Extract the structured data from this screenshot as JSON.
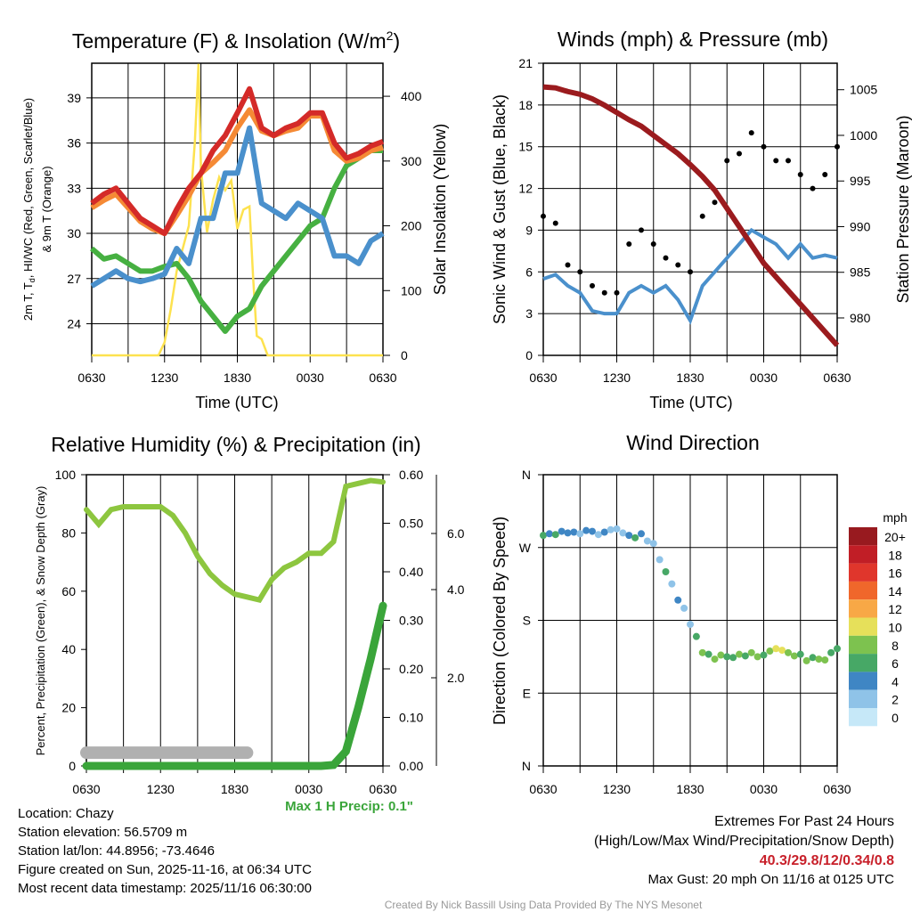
{
  "time_ticks": [
    "0630",
    "1230",
    "1830",
    "0030",
    "0630"
  ],
  "chart_data": [
    {
      "type": "line",
      "title": "Temperature (F) & Insolation (W/m",
      "title_sup": "2",
      "title_end": ")",
      "xlabel": "Time (UTC)",
      "ylabel": "2m T, T",
      "ylabel_sub": "d",
      "ylabel_rest": ", HI/WC (Red, Green, Scarlet/Blue)",
      "ylabel2": "& 9m T (Orange)",
      "y2label": "Solar Insolation (Yellow)",
      "x_hours_since_0630": [
        0,
        1,
        2,
        3,
        4,
        5,
        6,
        7,
        8,
        9,
        10,
        11,
        12,
        13,
        14,
        15,
        16,
        17,
        18,
        19,
        20,
        21,
        22,
        23,
        24
      ],
      "ylim": [
        21.9,
        41.3
      ],
      "yticks": [
        24,
        27,
        30,
        33,
        36,
        39
      ],
      "y2lim": [
        0,
        451
      ],
      "y2ticks": [
        0,
        100,
        200,
        300,
        400
      ],
      "series": [
        {
          "name": "2m T (Red)",
          "color": "#d42a28",
          "values": [
            32,
            32.6,
            33,
            32,
            31,
            30.5,
            30,
            31.6,
            33,
            34,
            35.5,
            36.5,
            38,
            39.6,
            37,
            36.5,
            37,
            37.3,
            38,
            38,
            36,
            35,
            35.3,
            35.8,
            36.1
          ]
        },
        {
          "name": "9m T (Orange)",
          "color": "#f58a35",
          "values": [
            31.7,
            32.2,
            32.6,
            31.7,
            30.8,
            30.3,
            30,
            31.2,
            32.5,
            34,
            34.7,
            35.5,
            37,
            38.2,
            36.8,
            36.5,
            36.8,
            37,
            37.8,
            37.8,
            35.5,
            34.8,
            35,
            35.5,
            35.7
          ]
        },
        {
          "name": "HI/WC (Blue)",
          "color": "#4a90cc",
          "values": [
            26.5,
            27,
            27.5,
            27,
            26.8,
            27,
            27.3,
            29,
            28,
            31,
            31,
            34,
            34,
            37,
            32,
            31.5,
            31,
            32,
            31.5,
            31,
            28.5,
            28.5,
            28,
            29.5,
            30
          ]
        },
        {
          "name": "Td (Green)",
          "color": "#46b041",
          "values": [
            29,
            28.3,
            28.5,
            28,
            27.5,
            27.5,
            27.8,
            28,
            27,
            25.5,
            24.5,
            23.5,
            24.5,
            25,
            26.5,
            27.5,
            28.5,
            29.5,
            30.5,
            31,
            33,
            34.5,
            35,
            35.5,
            35.5
          ]
        }
      ],
      "insolation": {
        "name": "Solar Insolation (Yellow)",
        "color": "#fde24f",
        "x": [
          0,
          5.5,
          6,
          6.5,
          7,
          7.5,
          8,
          8.5,
          8.8,
          9,
          9.5,
          10,
          10.5,
          11,
          11.5,
          12,
          12.5,
          13,
          13.3,
          13.6,
          14,
          14.5,
          15,
          24
        ],
        "values": [
          0,
          0,
          20,
          70,
          130,
          165,
          200,
          330,
          450,
          290,
          190,
          240,
          275,
          255,
          270,
          195,
          225,
          230,
          120,
          30,
          25,
          0,
          0,
          0
        ]
      }
    },
    {
      "type": "line",
      "title": "Winds (mph) & Pressure (mb)",
      "xlabel": "Time (UTC)",
      "ylabel": "Sonic Wind & Gust (Blue, Black)",
      "y2label": "Station Pressure (Maroon)",
      "x_hours_since_0630": [
        0,
        1,
        2,
        3,
        4,
        5,
        6,
        7,
        8,
        9,
        10,
        11,
        12,
        13,
        14,
        15,
        16,
        17,
        18,
        19,
        20,
        21,
        22,
        23,
        24
      ],
      "ylim": [
        0,
        21
      ],
      "yticks": [
        0,
        3,
        6,
        9,
        12,
        15,
        18,
        21
      ],
      "y2lim": [
        975.9,
        1007.9
      ],
      "y2ticks": [
        980,
        985,
        990,
        995,
        1000,
        1005
      ],
      "series": [
        {
          "name": "Sonic Wind",
          "color": "#4a90cc",
          "values": [
            5.5,
            5.8,
            5,
            4.5,
            3.2,
            3,
            3,
            4.5,
            5,
            4.5,
            5,
            4,
            2.5,
            5,
            6,
            7,
            8,
            9,
            8.5,
            8,
            7,
            8,
            7,
            7.2,
            7
          ]
        },
        {
          "name": "Gust",
          "color": "#000000",
          "type": "scatter",
          "values": [
            10,
            9.5,
            6.5,
            6,
            5,
            4.5,
            4.5,
            8,
            9,
            8,
            7,
            6.5,
            6,
            10,
            11,
            14,
            14.5,
            16,
            15,
            14,
            14,
            13,
            12,
            13,
            15
          ]
        },
        {
          "name": "Station Pressure",
          "color": "#9b1b1e",
          "values": [
            1005.3,
            1005.2,
            1004.8,
            1004.5,
            1004,
            1003.3,
            1002.5,
            1001.7,
            1001,
            1000,
            999,
            998,
            996.8,
            995.5,
            994,
            992,
            990,
            988,
            986,
            984.5,
            983,
            981.5,
            980,
            978.5,
            977
          ]
        }
      ]
    },
    {
      "type": "line",
      "title": "Relative Humidity (%) & Precipitation (in)",
      "ylabel": "Percent, Precipitation (Green), & Snow Depth (Gray)",
      "annotation": "Max 1 H Precip: 0.1\"",
      "x_hours_since_0630": [
        0,
        1,
        2,
        3,
        4,
        5,
        6,
        7,
        8,
        9,
        10,
        11,
        12,
        13,
        14,
        15,
        16,
        17,
        18,
        19,
        20,
        21,
        22,
        23,
        24
      ],
      "ylim": [
        0,
        100
      ],
      "yticks": [
        0,
        20,
        40,
        60,
        80,
        100
      ],
      "y2lim": [
        0,
        0.6
      ],
      "y2ticks": [
        "0.00",
        "0.10",
        "0.20",
        "0.30",
        "0.40",
        "0.50",
        "0.60"
      ],
      "y3ticks": [
        "2.0",
        "4.0",
        "6.0"
      ],
      "series": [
        {
          "name": "RH",
          "color": "#8dc63f",
          "values": [
            88,
            83,
            88,
            89,
            89,
            89,
            89,
            86,
            80,
            72,
            66,
            62,
            59,
            58,
            57,
            64,
            68,
            70,
            73,
            73,
            77,
            96,
            97,
            98,
            97.5
          ]
        },
        {
          "name": "Precipitation",
          "color": "#3aa53a",
          "values": [
            0,
            0,
            0,
            0,
            0,
            0,
            0,
            0,
            0,
            0,
            0,
            0,
            0,
            0,
            0,
            0,
            0,
            0,
            0,
            0,
            0.002,
            0.03,
            0.12,
            0.22,
            0.33
          ]
        },
        {
          "name": "Snow Depth",
          "color": "#b0b0b0",
          "values": [
            0.3,
            0.3,
            0.3,
            0.3,
            0.3,
            0.3,
            0.3,
            0.3,
            0.3,
            0.3,
            0.3,
            0.3,
            0.3,
            0.3,
            null,
            null,
            null,
            null,
            null,
            null,
            null,
            null,
            null,
            null,
            null
          ]
        }
      ]
    },
    {
      "type": "scatter",
      "title": "Wind Direction",
      "ylabel": "Direction (Colored By Speed)",
      "yticks": [
        "N",
        "E",
        "S",
        "W",
        "N"
      ],
      "legend_title": "mph",
      "legend": [
        {
          "label": "20+",
          "color": "#981a1f"
        },
        {
          "label": "18",
          "color": "#c11e26"
        },
        {
          "label": "16",
          "color": "#e0362c"
        },
        {
          "label": "14",
          "color": "#f0672b"
        },
        {
          "label": "12",
          "color": "#f8a846"
        },
        {
          "label": "10",
          "color": "#e6e05a"
        },
        {
          "label": "8",
          "color": "#7dc24f"
        },
        {
          "label": "6",
          "color": "#47a866"
        },
        {
          "label": "4",
          "color": "#3f86c4"
        },
        {
          "label": "2",
          "color": "#8fc3e8"
        },
        {
          "label": "0",
          "color": "#c6e8f8"
        }
      ],
      "x_hours_since_0630": [
        0,
        0.5,
        1,
        1.5,
        2,
        2.5,
        3,
        3.5,
        4,
        4.5,
        5,
        5.5,
        6,
        6.5,
        7,
        7.5,
        8,
        8.5,
        9,
        9.5,
        10,
        10.5,
        11,
        11.5,
        12,
        12.5,
        13,
        13.5,
        14,
        14.5,
        15,
        15.5,
        16,
        16.5,
        17,
        17.5,
        18,
        18.5,
        19,
        19.5,
        20,
        20.5,
        21,
        21.5,
        22,
        22.5,
        23,
        23.5,
        24
      ],
      "direction_deg": [
        285,
        287,
        286,
        290,
        288,
        289,
        287,
        291,
        290,
        286,
        289,
        292,
        293,
        288,
        285,
        282,
        287,
        278,
        275,
        255,
        240,
        225,
        205,
        195,
        175,
        160,
        140,
        138,
        132,
        137,
        135,
        134,
        138,
        136,
        140,
        135,
        137,
        142,
        145,
        143,
        140,
        136,
        138,
        130,
        134,
        132,
        131,
        140,
        145
      ],
      "speed_mph": [
        6,
        5,
        6,
        4,
        5,
        4,
        3,
        4,
        4,
        3,
        4,
        2,
        2,
        3,
        4,
        6,
        5,
        3,
        2,
        2,
        6,
        3,
        4,
        2,
        3,
        6,
        8,
        7,
        8,
        8,
        7,
        6,
        8,
        7,
        9,
        8,
        7,
        9,
        10,
        10,
        9,
        8,
        7,
        8,
        7,
        9,
        8,
        7,
        6
      ]
    }
  ],
  "info": {
    "location": "Location: Chazy",
    "elevation": "Station elevation: 56.5709 m",
    "latlon": "Station lat/lon: 44.8956; -73.4646",
    "created": "Figure created on Sun, 2025-11-16, at 06:34 UTC",
    "recent": "Most recent data timestamp: 2025/11/16 06:30:00"
  },
  "extremes": {
    "title": "Extremes For Past 24 Hours",
    "subtitle": "(High/Low/Max Wind/Precipitation/Snow Depth)",
    "values": "40.3/29.8/12/0.34/0.8",
    "gust": "Max Gust: 20 mph On 11/16 at 0125 UTC",
    "color": "#c8202a"
  },
  "credit": "Created By Nick Bassill Using Data Provided By The NYS Mesonet"
}
